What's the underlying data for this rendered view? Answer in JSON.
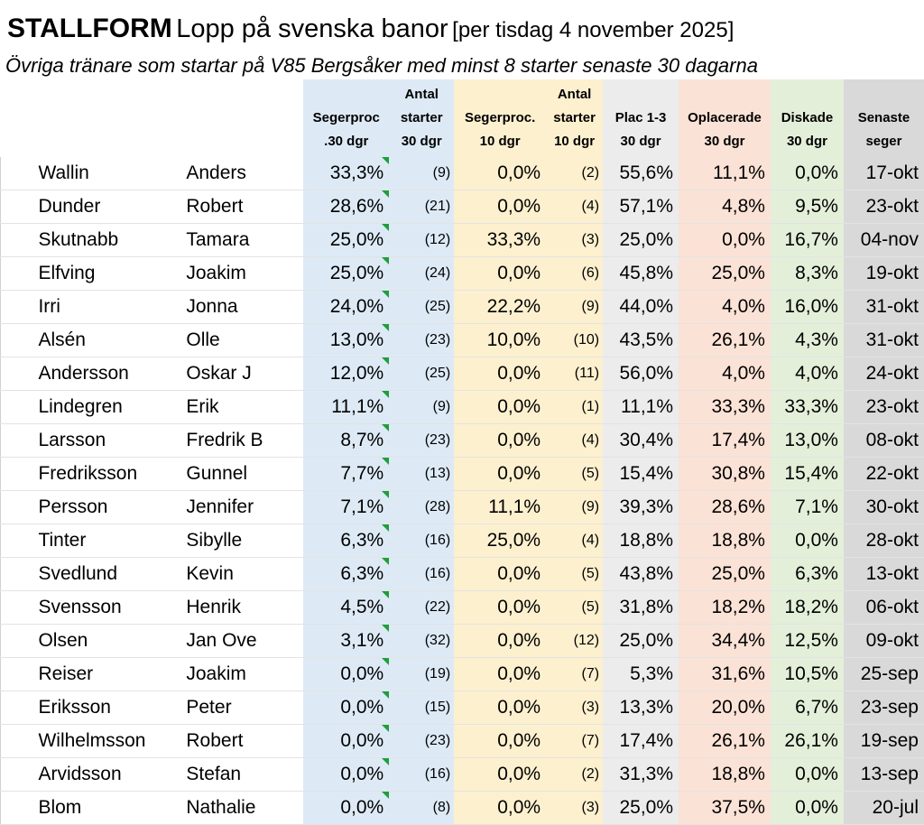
{
  "title": {
    "main": "STALLFORM",
    "sub": "Lopp på svenska banor",
    "date": "[per tisdag 4 november 2025]"
  },
  "subtitle": "Övriga tränare som startar på V85 Bergsåker med minst 8 starter senaste 30 dagarna",
  "columns": {
    "win30": "Segerproc\n.30 dgr",
    "starts30": "Antal\nstarter\n30 dgr",
    "win10": "Segerproc.\n10 dgr",
    "starts10": "Antal\nstarter\n10 dgr",
    "plac": "Plac 1-3\n30 dgr",
    "oplac": "Oplacerade\n30 dgr",
    "disk": "Diskade\n30 dgr",
    "last": "Senaste\nseger"
  },
  "colors": {
    "win30_bg": "#ddeaf6",
    "win10_bg": "#fdf0cf",
    "plac_bg": "#ececec",
    "oplac_bg": "#fbe2d6",
    "disk_bg": "#e4efda",
    "last_bg": "#d9d9d9",
    "flag": "#1f9e3a"
  },
  "rows": [
    {
      "last_name": "Wallin",
      "first_name": "Anders",
      "win30": "33,3%",
      "starts30": "(9)",
      "win10": "0,0%",
      "starts10": "(2)",
      "plac": "55,6%",
      "oplac": "11,1%",
      "disk": "0,0%",
      "last_win": "17-okt"
    },
    {
      "last_name": "Dunder",
      "first_name": "Robert",
      "win30": "28,6%",
      "starts30": "(21)",
      "win10": "0,0%",
      "starts10": "(4)",
      "plac": "57,1%",
      "oplac": "4,8%",
      "disk": "9,5%",
      "last_win": "23-okt"
    },
    {
      "last_name": "Skutnabb",
      "first_name": "Tamara",
      "win30": "25,0%",
      "starts30": "(12)",
      "win10": "33,3%",
      "starts10": "(3)",
      "plac": "25,0%",
      "oplac": "0,0%",
      "disk": "16,7%",
      "last_win": "04-nov"
    },
    {
      "last_name": "Elfving",
      "first_name": "Joakim",
      "win30": "25,0%",
      "starts30": "(24)",
      "win10": "0,0%",
      "starts10": "(6)",
      "plac": "45,8%",
      "oplac": "25,0%",
      "disk": "8,3%",
      "last_win": "19-okt"
    },
    {
      "last_name": "Irri",
      "first_name": "Jonna",
      "win30": "24,0%",
      "starts30": "(25)",
      "win10": "22,2%",
      "starts10": "(9)",
      "plac": "44,0%",
      "oplac": "4,0%",
      "disk": "16,0%",
      "last_win": "31-okt"
    },
    {
      "last_name": "Alsén",
      "first_name": "Olle",
      "win30": "13,0%",
      "starts30": "(23)",
      "win10": "10,0%",
      "starts10": "(10)",
      "plac": "43,5%",
      "oplac": "26,1%",
      "disk": "4,3%",
      "last_win": "31-okt"
    },
    {
      "last_name": "Andersson",
      "first_name": "Oskar J",
      "win30": "12,0%",
      "starts30": "(25)",
      "win10": "0,0%",
      "starts10": "(11)",
      "plac": "56,0%",
      "oplac": "4,0%",
      "disk": "4,0%",
      "last_win": "24-okt"
    },
    {
      "last_name": "Lindegren",
      "first_name": "Erik",
      "win30": "11,1%",
      "starts30": "(9)",
      "win10": "0,0%",
      "starts10": "(1)",
      "plac": "11,1%",
      "oplac": "33,3%",
      "disk": "33,3%",
      "last_win": "23-okt"
    },
    {
      "last_name": "Larsson",
      "first_name": "Fredrik B",
      "win30": "8,7%",
      "starts30": "(23)",
      "win10": "0,0%",
      "starts10": "(4)",
      "plac": "30,4%",
      "oplac": "17,4%",
      "disk": "13,0%",
      "last_win": "08-okt"
    },
    {
      "last_name": "Fredriksson",
      "first_name": "Gunnel",
      "win30": "7,7%",
      "starts30": "(13)",
      "win10": "0,0%",
      "starts10": "(5)",
      "plac": "15,4%",
      "oplac": "30,8%",
      "disk": "15,4%",
      "last_win": "22-okt"
    },
    {
      "last_name": "Persson",
      "first_name": "Jennifer",
      "win30": "7,1%",
      "starts30": "(28)",
      "win10": "11,1%",
      "starts10": "(9)",
      "plac": "39,3%",
      "oplac": "28,6%",
      "disk": "7,1%",
      "last_win": "30-okt"
    },
    {
      "last_name": "Tinter",
      "first_name": "Sibylle",
      "win30": "6,3%",
      "starts30": "(16)",
      "win10": "25,0%",
      "starts10": "(4)",
      "plac": "18,8%",
      "oplac": "18,8%",
      "disk": "0,0%",
      "last_win": "28-okt"
    },
    {
      "last_name": "Svedlund",
      "first_name": "Kevin",
      "win30": "6,3%",
      "starts30": "(16)",
      "win10": "0,0%",
      "starts10": "(5)",
      "plac": "43,8%",
      "oplac": "25,0%",
      "disk": "6,3%",
      "last_win": "13-okt"
    },
    {
      "last_name": "Svensson",
      "first_name": "Henrik",
      "win30": "4,5%",
      "starts30": "(22)",
      "win10": "0,0%",
      "starts10": "(5)",
      "plac": "31,8%",
      "oplac": "18,2%",
      "disk": "18,2%",
      "last_win": "06-okt"
    },
    {
      "last_name": "Olsen",
      "first_name": "Jan Ove",
      "win30": "3,1%",
      "starts30": "(32)",
      "win10": "0,0%",
      "starts10": "(12)",
      "plac": "25,0%",
      "oplac": "34,4%",
      "disk": "12,5%",
      "last_win": "09-okt"
    },
    {
      "last_name": "Reiser",
      "first_name": "Joakim",
      "win30": "0,0%",
      "starts30": "(19)",
      "win10": "0,0%",
      "starts10": "(7)",
      "plac": "5,3%",
      "oplac": "31,6%",
      "disk": "10,5%",
      "last_win": "25-sep"
    },
    {
      "last_name": "Eriksson",
      "first_name": "Peter",
      "win30": "0,0%",
      "starts30": "(15)",
      "win10": "0,0%",
      "starts10": "(3)",
      "plac": "13,3%",
      "oplac": "20,0%",
      "disk": "6,7%",
      "last_win": "23-sep"
    },
    {
      "last_name": "Wilhelmsson",
      "first_name": "Robert",
      "win30": "0,0%",
      "starts30": "(23)",
      "win10": "0,0%",
      "starts10": "(7)",
      "plac": "17,4%",
      "oplac": "26,1%",
      "disk": "26,1%",
      "last_win": "19-sep"
    },
    {
      "last_name": "Arvidsson",
      "first_name": "Stefan",
      "win30": "0,0%",
      "starts30": "(16)",
      "win10": "0,0%",
      "starts10": "(2)",
      "plac": "31,3%",
      "oplac": "18,8%",
      "disk": "0,0%",
      "last_win": "13-sep"
    },
    {
      "last_name": "Blom",
      "first_name": "Nathalie",
      "win30": "0,0%",
      "starts30": "(8)",
      "win10": "0,0%",
      "starts10": "(3)",
      "plac": "25,0%",
      "oplac": "37,5%",
      "disk": "0,0%",
      "last_win": "20-jul"
    }
  ]
}
